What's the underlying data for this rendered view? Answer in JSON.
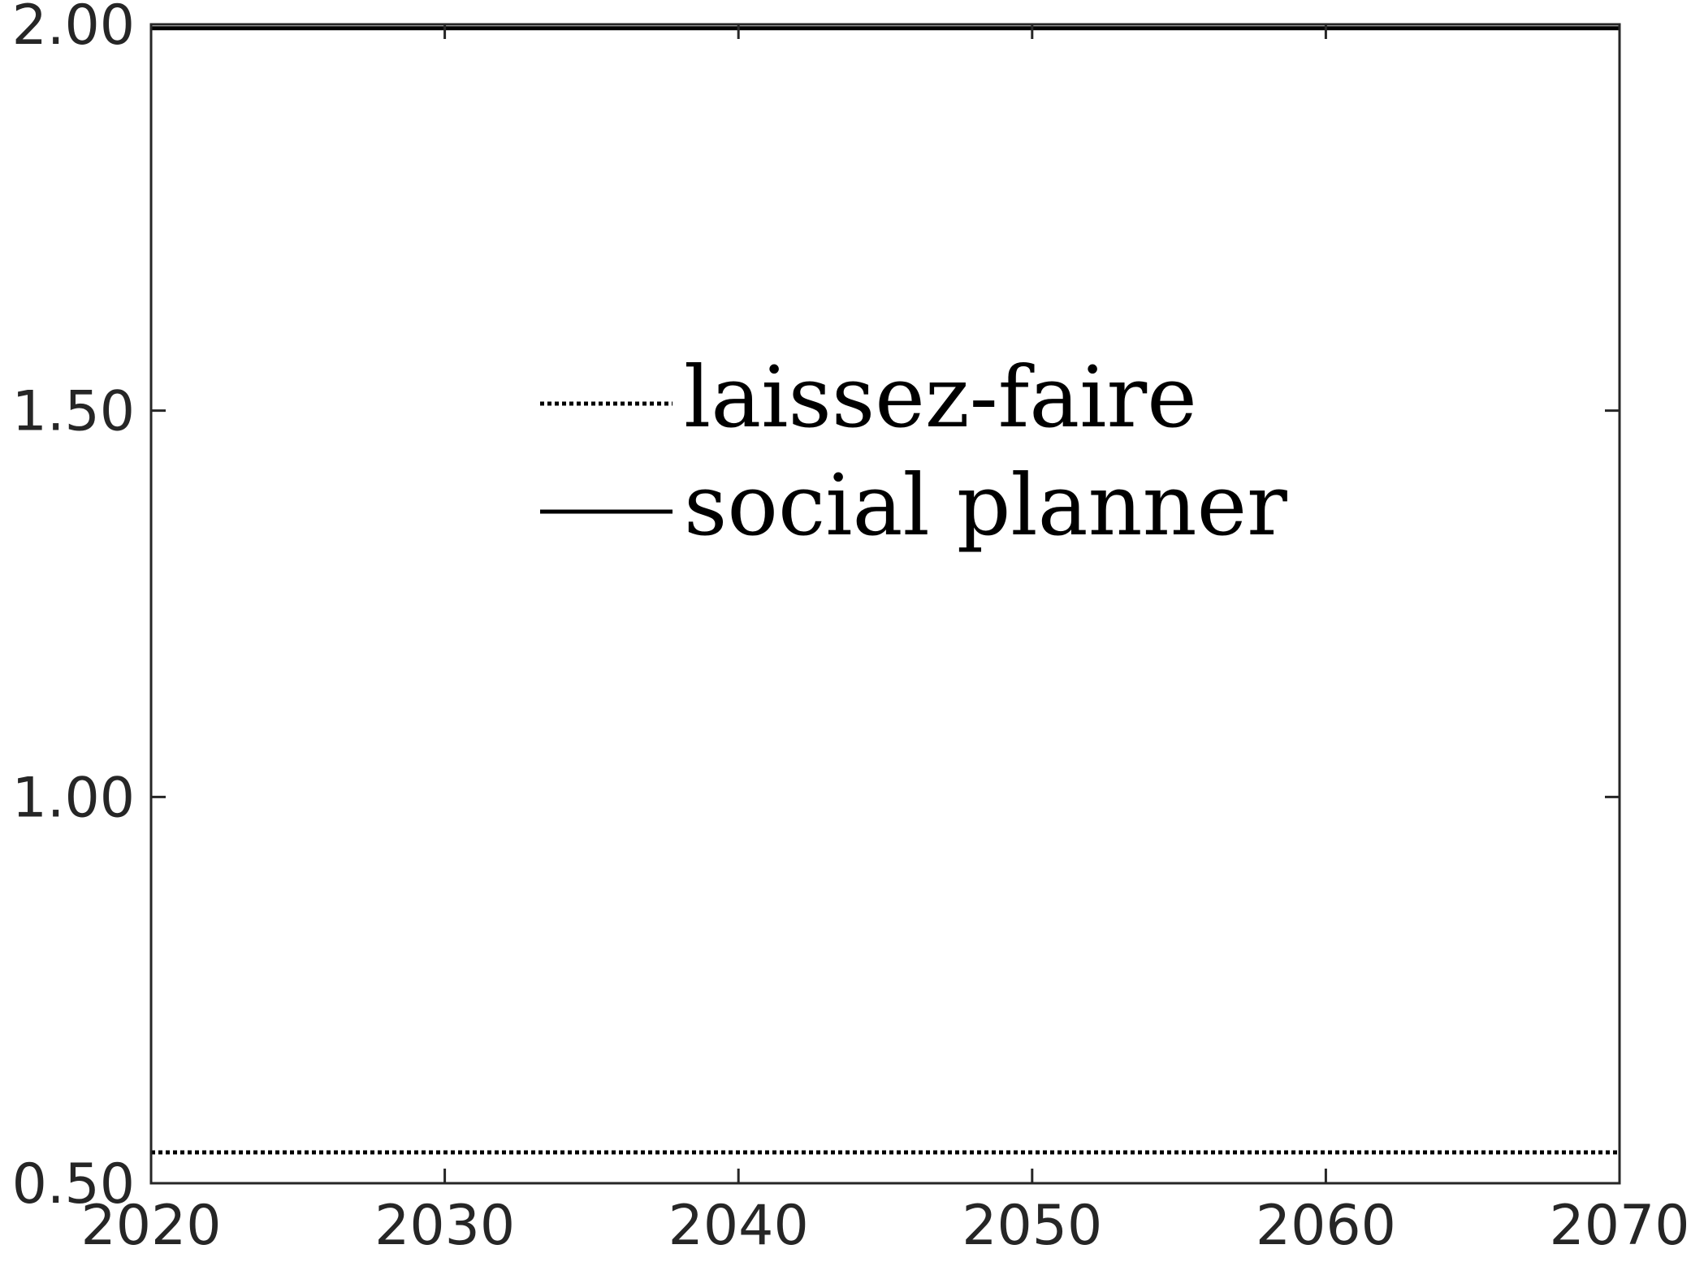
{
  "chart_data": {
    "type": "line",
    "title": "",
    "xlabel": "",
    "ylabel": "",
    "xlim": [
      2020,
      2070
    ],
    "ylim": [
      0.5,
      2.0
    ],
    "x_ticks": [
      2020,
      2030,
      2040,
      2050,
      2060,
      2070
    ],
    "x_tick_labels": [
      "2020",
      "2030",
      "2040",
      "2050",
      "2060",
      "2070"
    ],
    "y_ticks": [
      0.5,
      1.0,
      1.5,
      2.0
    ],
    "y_tick_labels": [
      "0.50",
      "1.00",
      "1.50",
      "2.00"
    ],
    "grid": false,
    "legend_position": "upper-center",
    "series": [
      {
        "name": "laissez-faire",
        "style": "dotted",
        "color": "#000000",
        "x": [
          2020,
          2030,
          2040,
          2050,
          2060,
          2070
        ],
        "y": [
          0.54,
          0.54,
          0.54,
          0.54,
          0.54,
          0.54
        ]
      },
      {
        "name": "social planner",
        "style": "solid",
        "color": "#000000",
        "x": [
          2020,
          2030,
          2040,
          2050,
          2060,
          2070
        ],
        "y": [
          1.995,
          1.995,
          1.995,
          1.995,
          1.995,
          1.995
        ]
      }
    ]
  }
}
